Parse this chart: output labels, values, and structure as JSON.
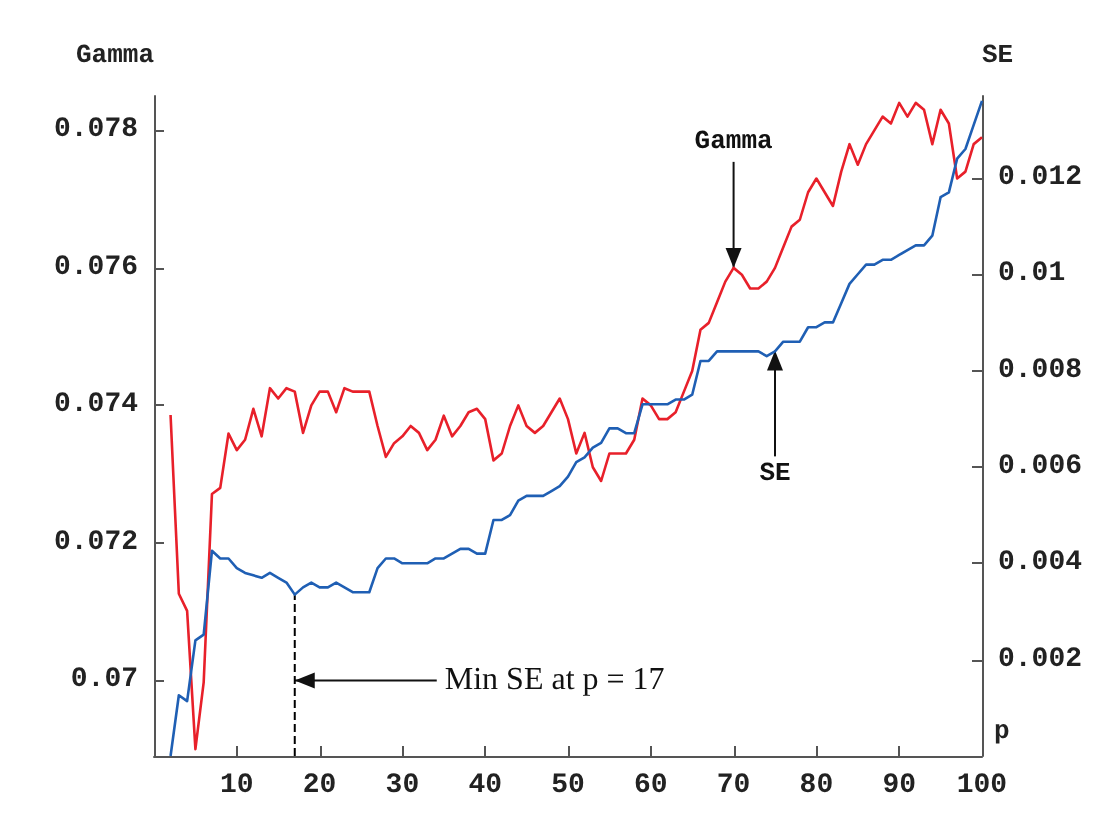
{
  "chart_data": {
    "type": "line",
    "ylabel": "Gamma",
    "y2label": "SE",
    "xlabel": "p",
    "xlim": [
      0,
      100
    ],
    "xticks": [
      10,
      20,
      30,
      40,
      50,
      60,
      70,
      80,
      90,
      100
    ],
    "ylim": [
      0.0689,
      0.0785
    ],
    "yticks": [
      0.07,
      0.072,
      0.074,
      0.076,
      0.078
    ],
    "y2lim": [
      0,
      0.0137
    ],
    "y2ticks": [
      0.002,
      0.004,
      0.006,
      0.008,
      0.01,
      0.012
    ],
    "x": [
      2,
      3,
      4,
      5,
      6,
      7,
      8,
      9,
      10,
      11,
      12,
      13,
      14,
      15,
      16,
      17,
      18,
      19,
      20,
      21,
      22,
      23,
      24,
      25,
      26,
      27,
      28,
      29,
      30,
      31,
      32,
      33,
      34,
      35,
      36,
      37,
      38,
      39,
      40,
      41,
      42,
      43,
      44,
      45,
      46,
      47,
      48,
      49,
      50,
      51,
      52,
      53,
      54,
      55,
      56,
      57,
      58,
      59,
      60,
      61,
      62,
      63,
      64,
      65,
      66,
      67,
      68,
      69,
      70,
      71,
      72,
      73,
      74,
      75,
      76,
      77,
      78,
      79,
      80,
      81,
      82,
      83,
      84,
      85,
      86,
      87,
      88,
      89,
      90,
      91,
      92,
      93,
      94,
      95,
      96,
      97,
      98,
      99,
      100
    ],
    "series": [
      {
        "color": "#e8202a",
        "values": [
          0.07386,
          0.07126,
          0.07101,
          0.069,
          0.06997,
          0.07271,
          0.0728,
          0.07359,
          0.07335,
          0.0735,
          0.07395,
          0.07355,
          0.07425,
          0.0741,
          0.07425,
          0.0742,
          0.0736,
          0.074,
          0.0742,
          0.0742,
          0.0739,
          0.07425,
          0.0742,
          0.0742,
          0.0742,
          0.0737,
          0.07325,
          0.07345,
          0.07355,
          0.0737,
          0.0736,
          0.07335,
          0.0735,
          0.07385,
          0.07355,
          0.0737,
          0.0739,
          0.07395,
          0.0738,
          0.0732,
          0.0733,
          0.0737,
          0.074,
          0.0737,
          0.0736,
          0.0737,
          0.0739,
          0.0741,
          0.0738,
          0.0733,
          0.0736,
          0.0731,
          0.0729,
          0.0733,
          0.0733,
          0.0733,
          0.0735,
          0.0741,
          0.074,
          0.0738,
          0.0738,
          0.0739,
          0.0742,
          0.0745,
          0.0751,
          0.0752,
          0.0755,
          0.0758,
          0.076,
          0.0759,
          0.0757,
          0.0757,
          0.0758,
          0.076,
          0.0763,
          0.0766,
          0.0767,
          0.0771,
          0.0773,
          0.0771,
          0.0769,
          0.0774,
          0.0778,
          0.0775,
          0.0778,
          0.078,
          0.0782,
          0.0781,
          0.0784,
          0.0782,
          0.0784,
          0.0783,
          0.0778,
          0.0783,
          0.0781,
          0.0773,
          0.0774,
          0.0778,
          0.0779
        ]
      },
      {
        "color": "#1f5fb4",
        "axis": "y2",
        "values": [
          0,
          0.00126,
          0.00114,
          0.0024,
          0.00252,
          0.00426,
          0.0041,
          0.0041,
          0.0039,
          0.0038,
          0.00375,
          0.0037,
          0.0038,
          0.0037,
          0.0036,
          0.00335,
          0.0035,
          0.0036,
          0.0035,
          0.0035,
          0.0036,
          0.0035,
          0.0034,
          0.0034,
          0.0034,
          0.0039,
          0.0041,
          0.0041,
          0.004,
          0.004,
          0.004,
          0.004,
          0.0041,
          0.0041,
          0.0042,
          0.0043,
          0.0043,
          0.0042,
          0.0042,
          0.0049,
          0.0049,
          0.005,
          0.0053,
          0.0054,
          0.0054,
          0.0054,
          0.0055,
          0.0056,
          0.0058,
          0.0061,
          0.0062,
          0.0064,
          0.0065,
          0.0068,
          0.0068,
          0.0067,
          0.0067,
          0.0073,
          0.0073,
          0.0073,
          0.0073,
          0.0074,
          0.0074,
          0.0075,
          0.0082,
          0.0082,
          0.0084,
          0.0084,
          0.0084,
          0.0084,
          0.0084,
          0.0084,
          0.0083,
          0.0084,
          0.0086,
          0.0086,
          0.0086,
          0.0089,
          0.0089,
          0.009,
          0.009,
          0.0094,
          0.0098,
          0.01,
          0.0102,
          0.0102,
          0.0103,
          0.0103,
          0.0104,
          0.0105,
          0.0106,
          0.0106,
          0.0108,
          0.0116,
          0.0117,
          0.0124,
          0.0126,
          0.0131,
          0.0136
        ]
      }
    ],
    "ref_lines": [
      {
        "axis": "x",
        "value": 17,
        "line_style": "dashed",
        "color": "#000000"
      }
    ],
    "annotations": [
      {
        "text": "Gamma",
        "x": 70,
        "y": 0.076
      },
      {
        "text": "SE",
        "x": 75,
        "y": 0.0748
      },
      {
        "text": "Min SE at p = 17",
        "x": 17,
        "y": 0.07
      }
    ],
    "grid": false,
    "marker": "none",
    "line_style": "solid"
  }
}
